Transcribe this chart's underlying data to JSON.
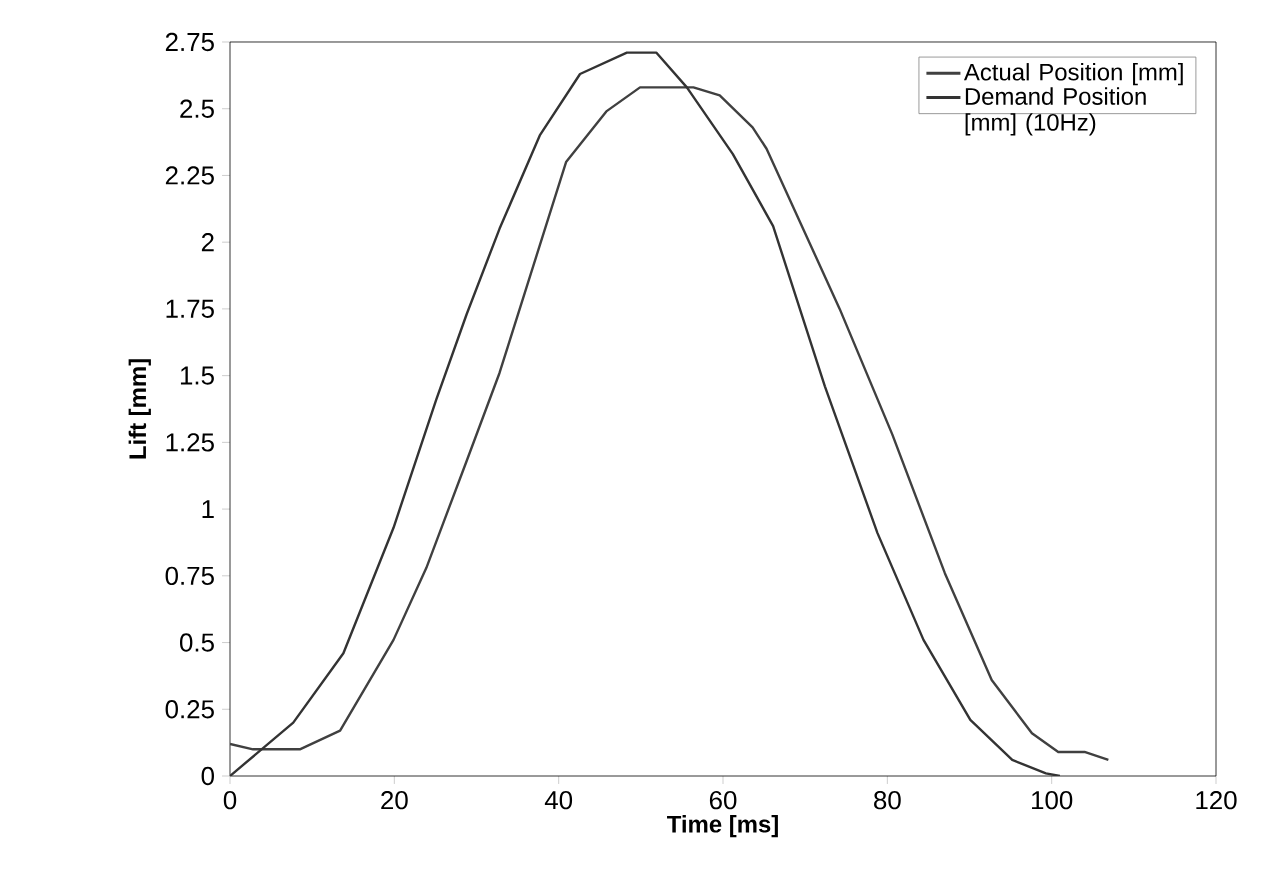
{
  "chart_data": {
    "type": "line",
    "xlabel": "Time [ms]",
    "ylabel": "Lift [mm]",
    "xlim": [
      0,
      120
    ],
    "xticks": [
      0,
      20,
      40,
      60,
      80,
      100,
      120
    ],
    "ylim": [
      0,
      2.75
    ],
    "yticks": [
      0,
      0.25,
      0.5,
      0.75,
      1,
      1.25,
      1.5,
      1.75,
      2,
      2.25,
      2.5,
      2.75
    ],
    "legend": "top right",
    "grid": false,
    "marker": "none",
    "line_style": "solid",
    "series": [
      {
        "name": "Actual Position [mm]",
        "color": "#404040",
        "x": [
          0,
          2.8,
          8.5,
          13.4,
          19.9,
          23.9,
          28.8,
          32.8,
          40.9,
          45.8,
          49.9,
          56.4,
          59.6,
          63.6,
          65.3,
          74.2,
          80.6,
          87.0,
          92.7,
          97.6,
          100.8,
          104,
          106.9
        ],
        "values": [
          0.12,
          0.1,
          0.1,
          0.17,
          0.51,
          0.78,
          1.18,
          1.51,
          2.3,
          2.49,
          2.58,
          2.58,
          2.55,
          2.43,
          2.35,
          1.75,
          1.28,
          0.76,
          0.36,
          0.16,
          0.09,
          0.09,
          0.06
        ]
      },
      {
        "name": "Demand Position [mm] (10Hz)",
        "color": "#333333",
        "x": [
          0,
          7.7,
          13.8,
          19.9,
          25.1,
          28.8,
          32.8,
          37.7,
          42.6,
          48.3,
          51.9,
          55.6,
          61.2,
          66.1,
          72.4,
          78.8,
          84.4,
          90.1,
          95.2,
          99.3,
          101
        ],
        "values": [
          0,
          0.2,
          0.46,
          0.93,
          1.41,
          1.73,
          2.05,
          2.4,
          2.63,
          2.71,
          2.71,
          2.58,
          2.33,
          2.06,
          1.46,
          0.91,
          0.51,
          0.21,
          0.06,
          0.01,
          0
        ]
      }
    ]
  }
}
